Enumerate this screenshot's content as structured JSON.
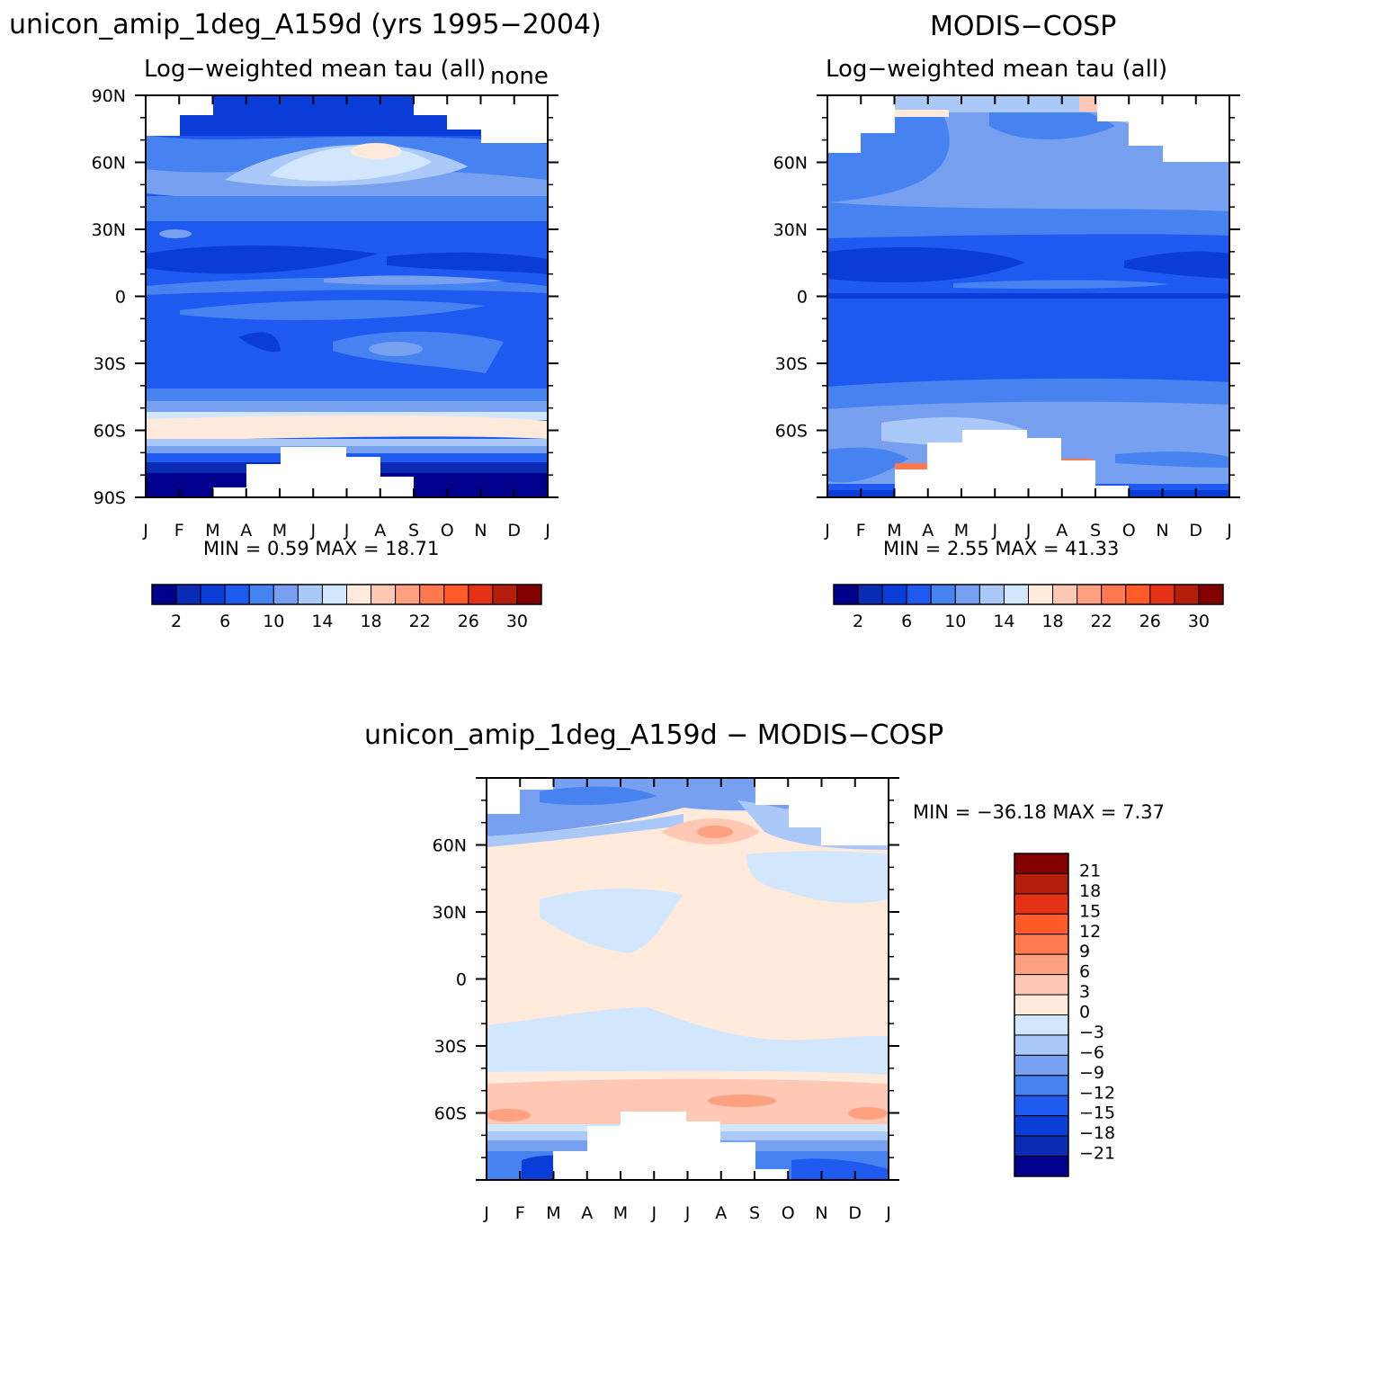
{
  "colors": {
    "scale": [
      "#00008c",
      "#0a2cb4",
      "#0a3cd8",
      "#1e5af0",
      "#4682f0",
      "#78a0f0",
      "#aac8f8",
      "#d2e6fc",
      "#ffeadc",
      "#ffc8b4",
      "#ffa080",
      "#ff7850",
      "#ff5a28",
      "#e63214",
      "#b41e0a",
      "#820000"
    ]
  },
  "panels": {
    "model": {
      "title": "unicon_amip_1deg_A159d (yrs 1995−2004)",
      "subtitle": "Log−weighted mean tau (all)",
      "corner": "none",
      "stats": "MIN =    0.59  MAX =   18.71"
    },
    "obs": {
      "title": "MODIS−COSP",
      "subtitle": "Log−weighted mean tau (all)",
      "stats": "MIN =    2.55  MAX =   41.33"
    },
    "diff": {
      "title": "unicon_amip_1deg_A159d  −  MODIS−COSP",
      "stats": "MIN = −36.18  MAX =    7.37"
    }
  },
  "chart_data": [
    {
      "type": "heatmap",
      "title": "unicon_amip_1deg_A159d (yrs 1995−2004)",
      "subtitle": "Log−weighted mean tau (all)",
      "x_ticklabels": [
        "J",
        "F",
        "M",
        "A",
        "M",
        "J",
        "J",
        "A",
        "S",
        "O",
        "N",
        "D",
        "J"
      ],
      "y_ticklabels": [
        "90N",
        "60N",
        "30N",
        "0",
        "30S",
        "60S",
        "90S"
      ],
      "ylim": [
        -90,
        90
      ],
      "colorbar_labels": [
        "2",
        "6",
        "10",
        "14",
        "18",
        "22",
        "26",
        "30"
      ],
      "colorbar_levels": [
        2,
        4,
        6,
        8,
        10,
        12,
        14,
        16,
        18,
        20,
        22,
        24,
        26,
        28,
        30
      ],
      "min": 0.59,
      "max": 18.71
    },
    {
      "type": "heatmap",
      "title": "MODIS−COSP",
      "subtitle": "Log−weighted mean tau (all)",
      "x_ticklabels": [
        "J",
        "F",
        "M",
        "A",
        "M",
        "J",
        "J",
        "A",
        "S",
        "O",
        "N",
        "D",
        "J"
      ],
      "y_ticklabels": [
        "60N",
        "30N",
        "0",
        "30S",
        "60S"
      ],
      "ylim": [
        -90,
        90
      ],
      "colorbar_labels": [
        "2",
        "6",
        "10",
        "14",
        "18",
        "22",
        "26",
        "30"
      ],
      "colorbar_levels": [
        2,
        4,
        6,
        8,
        10,
        12,
        14,
        16,
        18,
        20,
        22,
        24,
        26,
        28,
        30
      ],
      "min": 2.55,
      "max": 41.33
    },
    {
      "type": "heatmap",
      "title": "unicon_amip_1deg_A159d  −  MODIS−COSP",
      "x_ticklabels": [
        "J",
        "F",
        "M",
        "A",
        "M",
        "J",
        "J",
        "A",
        "S",
        "O",
        "N",
        "D",
        "J"
      ],
      "y_ticklabels": [
        "60N",
        "30N",
        "0",
        "30S",
        "60S"
      ],
      "ylim": [
        -90,
        90
      ],
      "colorbar_labels": [
        "21",
        "18",
        "15",
        "12",
        "9",
        "6",
        "3",
        "0",
        "−3",
        "−6",
        "−9",
        "−12",
        "−15",
        "−18",
        "−21"
      ],
      "min": -36.18,
      "max": 7.37
    }
  ]
}
